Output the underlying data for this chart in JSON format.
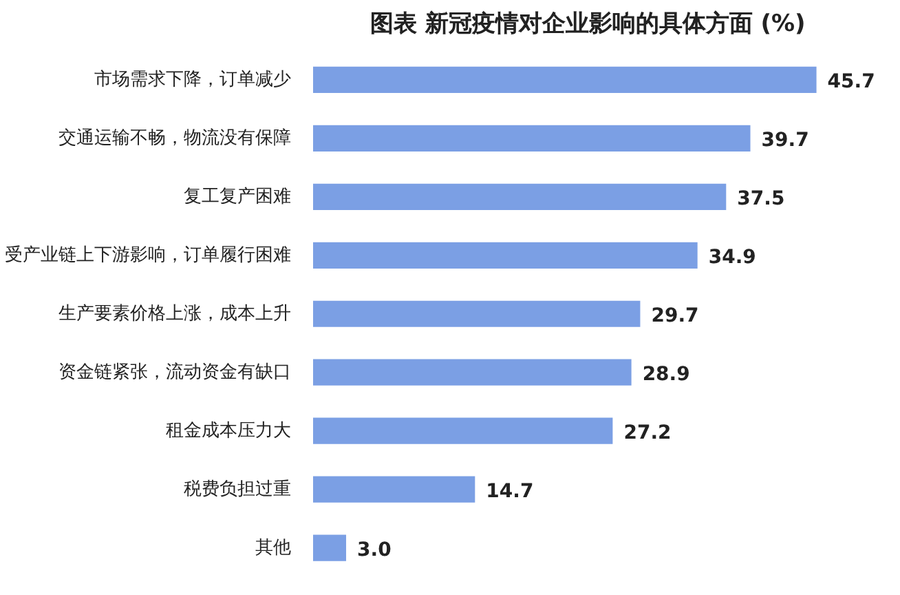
{
  "chart_data": {
    "type": "bar",
    "orientation": "horizontal",
    "title": "图表    新冠疫情对企业影响的具体方面 (%)",
    "categories": [
      "市场需求下降，订单减少",
      "交通运输不畅，物流没有保障",
      "复工复产困难",
      "受产业链上下游影响，订单履行困难",
      "生产要素价格上涨，成本上升",
      "资金链紧张，流动资金有缺口",
      "租金成本压力大",
      "税费负担过重",
      "其他"
    ],
    "values": [
      45.7,
      39.7,
      37.5,
      34.9,
      29.7,
      28.9,
      27.2,
      14.7,
      3.0
    ],
    "value_labels": [
      "45.7",
      "39.7",
      "37.5",
      "34.9",
      "29.7",
      "28.9",
      "27.2",
      "14.7",
      "3.0"
    ],
    "color": "#7b9fe4",
    "grid": false
  }
}
